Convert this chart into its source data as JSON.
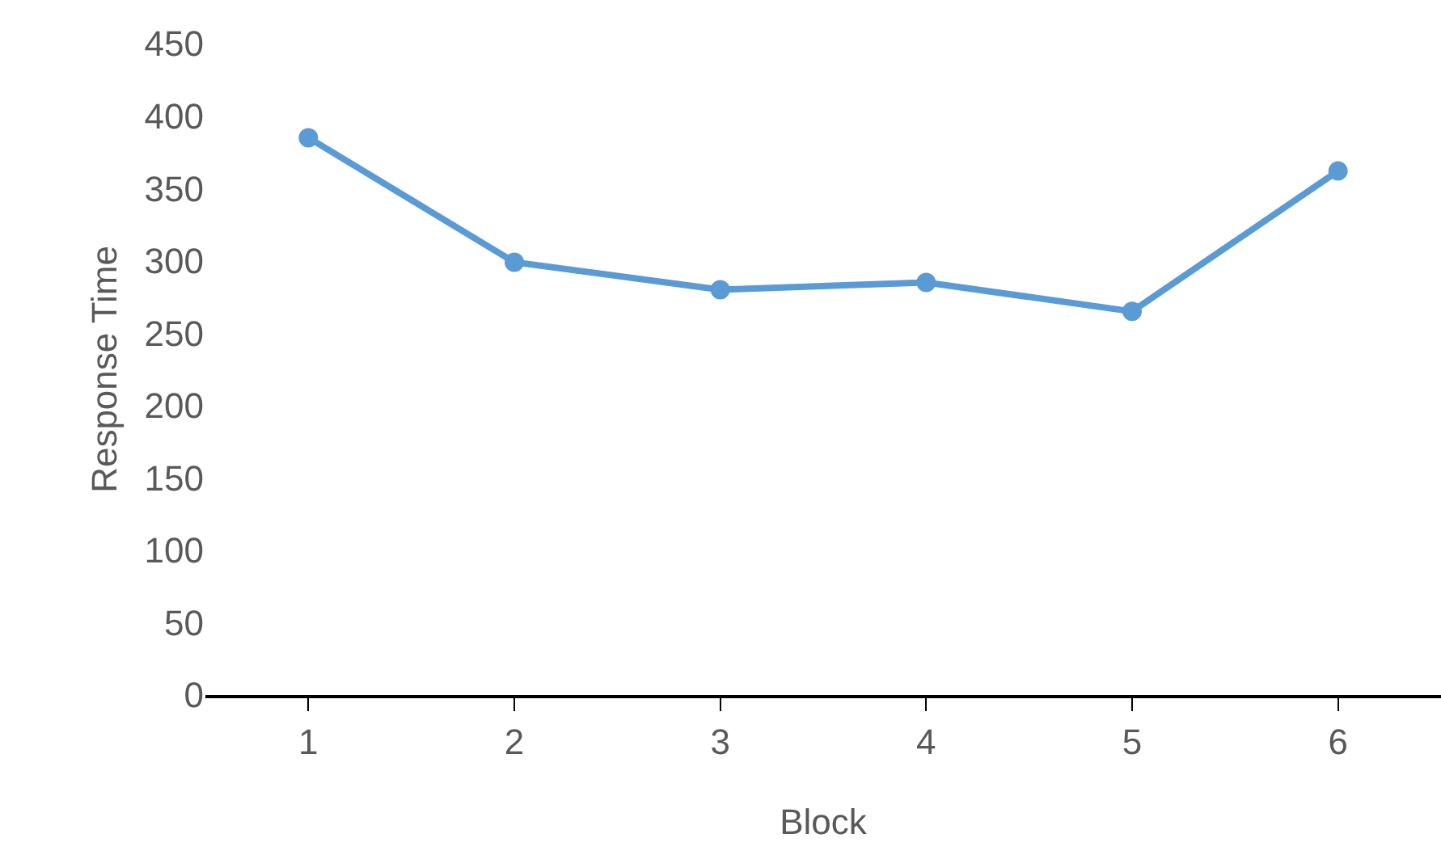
{
  "chart_data": {
    "type": "line",
    "xlabel": "Block",
    "ylabel": "Response Time",
    "categories": [
      "1",
      "2",
      "3",
      "4",
      "5",
      "6"
    ],
    "series": [
      {
        "color": "#5b9bd5",
        "values": [
          385,
          299,
          280,
          285,
          265,
          362
        ]
      }
    ],
    "ylim": [
      0,
      450
    ],
    "yticks": [
      0,
      50,
      100,
      150,
      200,
      250,
      300,
      350,
      400,
      450
    ],
    "legend": false,
    "marker": "circle",
    "line_style": "solid"
  }
}
